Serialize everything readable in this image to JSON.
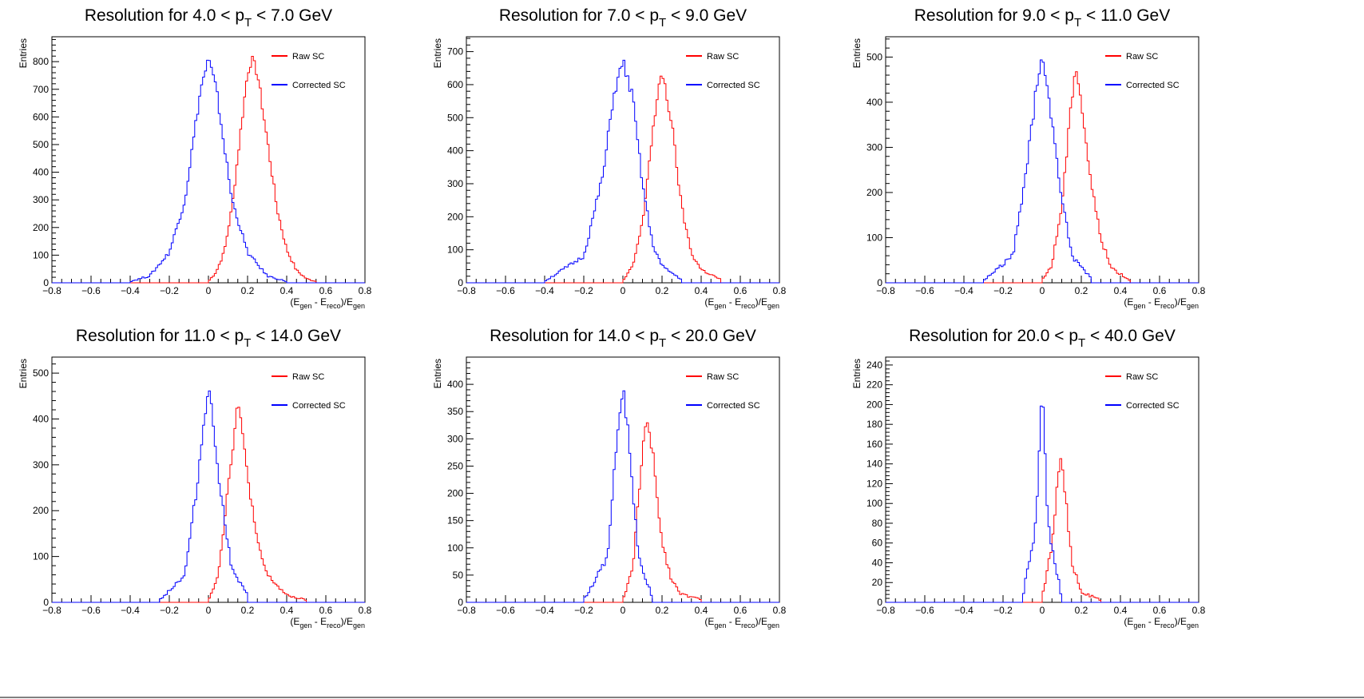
{
  "chart_data": [
    {
      "type": "histogram",
      "title": {
        "prefix": "Resolution for 4.0 < p",
        "sub": "T",
        "suffix": " < 7.0 GeV"
      },
      "xlim": [
        -0.8,
        0.8
      ],
      "ylim": [
        0,
        890
      ],
      "xticks": [
        -0.8,
        -0.6,
        -0.4,
        -0.2,
        0,
        0.2,
        0.4,
        0.6,
        0.8
      ],
      "yticks": [
        0,
        100,
        200,
        300,
        400,
        500,
        600,
        700,
        800
      ],
      "series": [
        {
          "name": "Raw SC",
          "color": "#ff0000",
          "peak_x": 0.22,
          "peak_y": 810,
          "width": 0.085,
          "points": [
            [
              0.0,
              5
            ],
            [
              0.04,
              40
            ],
            [
              0.08,
              110
            ],
            [
              0.12,
              270
            ],
            [
              0.16,
              520
            ],
            [
              0.2,
              760
            ],
            [
              0.22,
              810
            ],
            [
              0.25,
              760
            ],
            [
              0.3,
              520
            ],
            [
              0.35,
              270
            ],
            [
              0.4,
              120
            ],
            [
              0.45,
              45
            ],
            [
              0.5,
              15
            ],
            [
              0.55,
              5
            ]
          ]
        },
        {
          "name": "Corrected SC",
          "color": "#0000ff",
          "peak_x": 0.0,
          "peak_y": 810,
          "width": 0.085,
          "points": [
            [
              -0.4,
              5
            ],
            [
              -0.3,
              25
            ],
            [
              -0.2,
              110
            ],
            [
              -0.12,
              300
            ],
            [
              -0.08,
              500
            ],
            [
              -0.04,
              700
            ],
            [
              0.0,
              810
            ],
            [
              0.04,
              700
            ],
            [
              0.08,
              500
            ],
            [
              0.12,
              300
            ],
            [
              0.2,
              110
            ],
            [
              0.3,
              25
            ],
            [
              0.4,
              5
            ]
          ]
        }
      ]
    },
    {
      "type": "histogram",
      "title": {
        "prefix": "Resolution for 7.0 < p",
        "sub": "T",
        "suffix": " < 9.0 GeV"
      },
      "xlim": [
        -0.8,
        0.8
      ],
      "ylim": [
        0,
        745
      ],
      "xticks": [
        -0.8,
        -0.6,
        -0.4,
        -0.2,
        0,
        0.2,
        0.4,
        0.6,
        0.8
      ],
      "yticks": [
        0,
        100,
        200,
        300,
        400,
        500,
        600,
        700
      ],
      "series": [
        {
          "name": "Raw SC",
          "color": "#ff0000",
          "peak_x": 0.2,
          "peak_y": 645,
          "width": 0.075,
          "points": [
            [
              0.0,
              5
            ],
            [
              0.05,
              50
            ],
            [
              0.1,
              180
            ],
            [
              0.15,
              450
            ],
            [
              0.2,
              645
            ],
            [
              0.25,
              480
            ],
            [
              0.3,
              230
            ],
            [
              0.35,
              90
            ],
            [
              0.4,
              40
            ],
            [
              0.5,
              10
            ]
          ]
        },
        {
          "name": "Corrected SC",
          "color": "#0000ff",
          "peak_x": 0.0,
          "peak_y": 670,
          "width": 0.075,
          "points": [
            [
              -0.4,
              5
            ],
            [
              -0.2,
              80
            ],
            [
              -0.1,
              330
            ],
            [
              -0.05,
              560
            ],
            [
              0.0,
              670
            ],
            [
              0.05,
              560
            ],
            [
              0.1,
              300
            ],
            [
              0.15,
              120
            ],
            [
              0.2,
              50
            ],
            [
              0.3,
              10
            ]
          ]
        }
      ]
    },
    {
      "type": "histogram",
      "title": {
        "prefix": "Resolution for 9.0 < p",
        "sub": "T",
        "suffix": " < 11.0 GeV"
      },
      "xlim": [
        -0.8,
        0.8
      ],
      "ylim": [
        0,
        545
      ],
      "xticks": [
        -0.8,
        -0.6,
        -0.4,
        -0.2,
        0,
        0.2,
        0.4,
        0.6,
        0.8
      ],
      "yticks": [
        0,
        100,
        200,
        300,
        400,
        500
      ],
      "series": [
        {
          "name": "Raw SC",
          "color": "#ff0000",
          "peak_x": 0.17,
          "peak_y": 490,
          "width": 0.065,
          "points": [
            [
              0.0,
              5
            ],
            [
              0.05,
              40
            ],
            [
              0.1,
              170
            ],
            [
              0.15,
              400
            ],
            [
              0.17,
              490
            ],
            [
              0.2,
              400
            ],
            [
              0.25,
              220
            ],
            [
              0.3,
              100
            ],
            [
              0.35,
              35
            ],
            [
              0.45,
              5
            ]
          ]
        },
        {
          "name": "Corrected SC",
          "color": "#0000ff",
          "peak_x": 0.0,
          "peak_y": 490,
          "width": 0.065,
          "points": [
            [
              -0.3,
              5
            ],
            [
              -0.15,
              60
            ],
            [
              -0.08,
              250
            ],
            [
              -0.03,
              430
            ],
            [
              0.0,
              490
            ],
            [
              0.03,
              430
            ],
            [
              0.08,
              250
            ],
            [
              0.15,
              60
            ],
            [
              0.25,
              10
            ]
          ]
        }
      ]
    },
    {
      "type": "histogram",
      "title": {
        "prefix": "Resolution for 11.0 < p",
        "sub": "T",
        "suffix": " < 14.0 GeV"
      },
      "xlim": [
        -0.8,
        0.8
      ],
      "ylim": [
        0,
        535
      ],
      "xticks": [
        -0.8,
        -0.6,
        -0.4,
        -0.2,
        0,
        0.2,
        0.4,
        0.6,
        0.8
      ],
      "yticks": [
        0,
        100,
        200,
        300,
        400,
        500
      ],
      "series": [
        {
          "name": "Raw SC",
          "color": "#ff0000",
          "peak_x": 0.15,
          "peak_y": 440,
          "width": 0.06,
          "points": [
            [
              0.0,
              5
            ],
            [
              0.05,
              60
            ],
            [
              0.1,
              250
            ],
            [
              0.15,
              440
            ],
            [
              0.2,
              280
            ],
            [
              0.25,
              130
            ],
            [
              0.3,
              60
            ],
            [
              0.4,
              15
            ],
            [
              0.5,
              5
            ]
          ]
        },
        {
          "name": "Corrected SC",
          "color": "#0000ff",
          "peak_x": 0.0,
          "peak_y": 480,
          "width": 0.055,
          "points": [
            [
              -0.25,
              5
            ],
            [
              -0.12,
              60
            ],
            [
              -0.06,
              250
            ],
            [
              0.0,
              480
            ],
            [
              0.06,
              250
            ],
            [
              0.12,
              70
            ],
            [
              0.2,
              15
            ]
          ]
        }
      ]
    },
    {
      "type": "histogram",
      "title": {
        "prefix": "Resolution for 14.0 < p",
        "sub": "T",
        "suffix": " < 20.0 GeV"
      },
      "xlim": [
        -0.8,
        0.8
      ],
      "ylim": [
        0,
        450
      ],
      "xticks": [
        -0.8,
        -0.6,
        -0.4,
        -0.2,
        0,
        0.2,
        0.4,
        0.6,
        0.8
      ],
      "yticks": [
        0,
        50,
        100,
        150,
        200,
        250,
        300,
        350,
        400
      ],
      "series": [
        {
          "name": "Raw SC",
          "color": "#ff0000",
          "peak_x": 0.12,
          "peak_y": 330,
          "width": 0.05,
          "points": [
            [
              0.0,
              5
            ],
            [
              0.05,
              60
            ],
            [
              0.1,
              280
            ],
            [
              0.12,
              330
            ],
            [
              0.15,
              280
            ],
            [
              0.2,
              110
            ],
            [
              0.25,
              40
            ],
            [
              0.3,
              15
            ],
            [
              0.4,
              5
            ]
          ]
        },
        {
          "name": "Corrected SC",
          "color": "#0000ff",
          "peak_x": 0.0,
          "peak_y": 400,
          "width": 0.045,
          "points": [
            [
              -0.2,
              5
            ],
            [
              -0.08,
              80
            ],
            [
              -0.03,
              300
            ],
            [
              0.0,
              400
            ],
            [
              0.03,
              300
            ],
            [
              0.08,
              80
            ],
            [
              0.15,
              10
            ]
          ]
        }
      ]
    },
    {
      "type": "histogram",
      "title": {
        "prefix": "Resolution for 20.0 < p",
        "sub": "T",
        "suffix": " < 40.0 GeV"
      },
      "xlim": [
        -0.8,
        0.8
      ],
      "ylim": [
        0,
        248
      ],
      "xticks": [
        -0.8,
        -0.6,
        -0.4,
        -0.2,
        0,
        0.2,
        0.4,
        0.6,
        0.8
      ],
      "yticks": [
        0,
        20,
        40,
        60,
        80,
        100,
        120,
        140,
        160,
        180,
        200,
        220,
        240
      ],
      "series": [
        {
          "name": "Raw SC",
          "color": "#ff0000",
          "peak_x": 0.09,
          "peak_y": 150,
          "width": 0.04,
          "points": [
            [
              0.0,
              5
            ],
            [
              0.05,
              60
            ],
            [
              0.09,
              150
            ],
            [
              0.12,
              110
            ],
            [
              0.15,
              40
            ],
            [
              0.2,
              10
            ],
            [
              0.3,
              2
            ]
          ]
        },
        {
          "name": "Corrected SC",
          "color": "#0000ff",
          "peak_x": 0.0,
          "peak_y": 225,
          "width": 0.025,
          "points": [
            [
              -0.1,
              5
            ],
            [
              -0.03,
              80
            ],
            [
              0.0,
              225
            ],
            [
              0.03,
              80
            ],
            [
              0.1,
              5
            ]
          ]
        }
      ]
    }
  ],
  "shared": {
    "ylabel": "Entries",
    "xlabel": {
      "a": "(E",
      "b": "gen",
      "c": " - E",
      "d": "reco",
      "e": ")/E",
      "f": "gen"
    }
  }
}
